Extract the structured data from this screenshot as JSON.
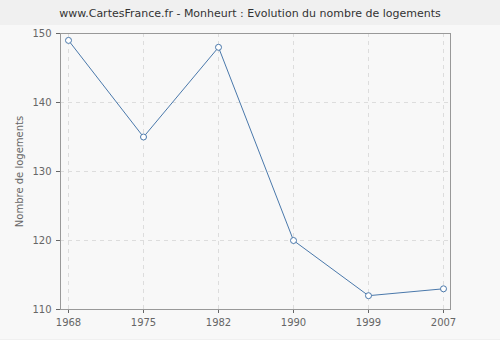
{
  "chart_data": {
    "type": "line",
    "title": "www.CartesFrance.fr - Monheurt : Evolution du nombre de logements",
    "y_label": "Nombre de logements",
    "categories": [
      "1968",
      "1975",
      "1982",
      "1990",
      "1999",
      "2007"
    ],
    "values": [
      149,
      135,
      148,
      120,
      112,
      113
    ],
    "color": "#4a78ab",
    "marker": "circle",
    "ylim": [
      110,
      150
    ],
    "yticks": [
      110,
      120,
      130,
      140,
      150
    ],
    "grid": true
  }
}
